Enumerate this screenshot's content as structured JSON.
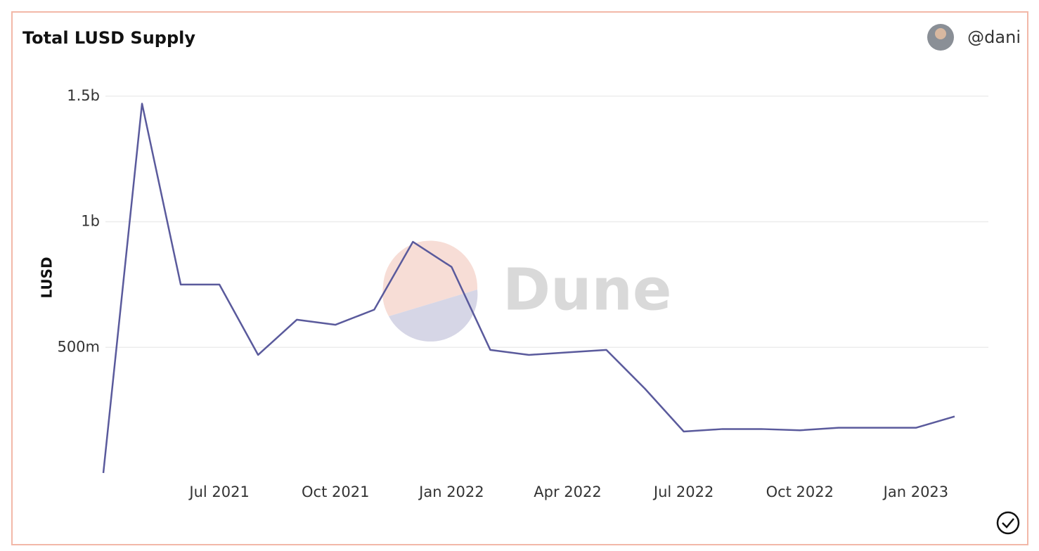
{
  "chart_data": {
    "type": "line",
    "title": "Total LUSD Supply",
    "author": "@dani",
    "watermark": "Dune",
    "y_label": "LUSD",
    "x": [
      "2021-04",
      "2021-05",
      "2021-06",
      "2021-07",
      "2021-08",
      "2021-09",
      "2021-10",
      "2021-11",
      "2021-12",
      "2022-01",
      "2022-02",
      "2022-03",
      "2022-04",
      "2022-05",
      "2022-06",
      "2022-07",
      "2022-08",
      "2022-09",
      "2022-10",
      "2022-11",
      "2022-12",
      "2023-01",
      "2023-02"
    ],
    "series": [
      {
        "name": "LUSD",
        "color": "#5a5a9c",
        "values": [
          0,
          1470000000,
          750000000,
          750000000,
          470000000,
          610000000,
          590000000,
          650000000,
          920000000,
          820000000,
          490000000,
          470000000,
          480000000,
          490000000,
          335000000,
          165000000,
          175000000,
          175000000,
          170000000,
          180000000,
          180000000,
          180000000,
          225000000
        ]
      }
    ],
    "xlim": [
      "2021-04",
      "2023-03"
    ],
    "xticks": [
      {
        "value": "2021-07",
        "label": "Jul 2021"
      },
      {
        "value": "2021-10",
        "label": "Oct 2021"
      },
      {
        "value": "2022-01",
        "label": "Jan 2022"
      },
      {
        "value": "2022-04",
        "label": "Apr 2022"
      },
      {
        "value": "2022-07",
        "label": "Jul 2022"
      },
      {
        "value": "2022-10",
        "label": "Oct 2022"
      },
      {
        "value": "2023-01",
        "label": "Jan 2023"
      }
    ],
    "ylim": [
      0,
      1600000000
    ],
    "yticks": [
      {
        "value": 500000000,
        "label": "500m"
      },
      {
        "value": 1000000000,
        "label": "1b"
      },
      {
        "value": 1500000000,
        "label": "1.5b"
      }
    ],
    "grid": true
  }
}
